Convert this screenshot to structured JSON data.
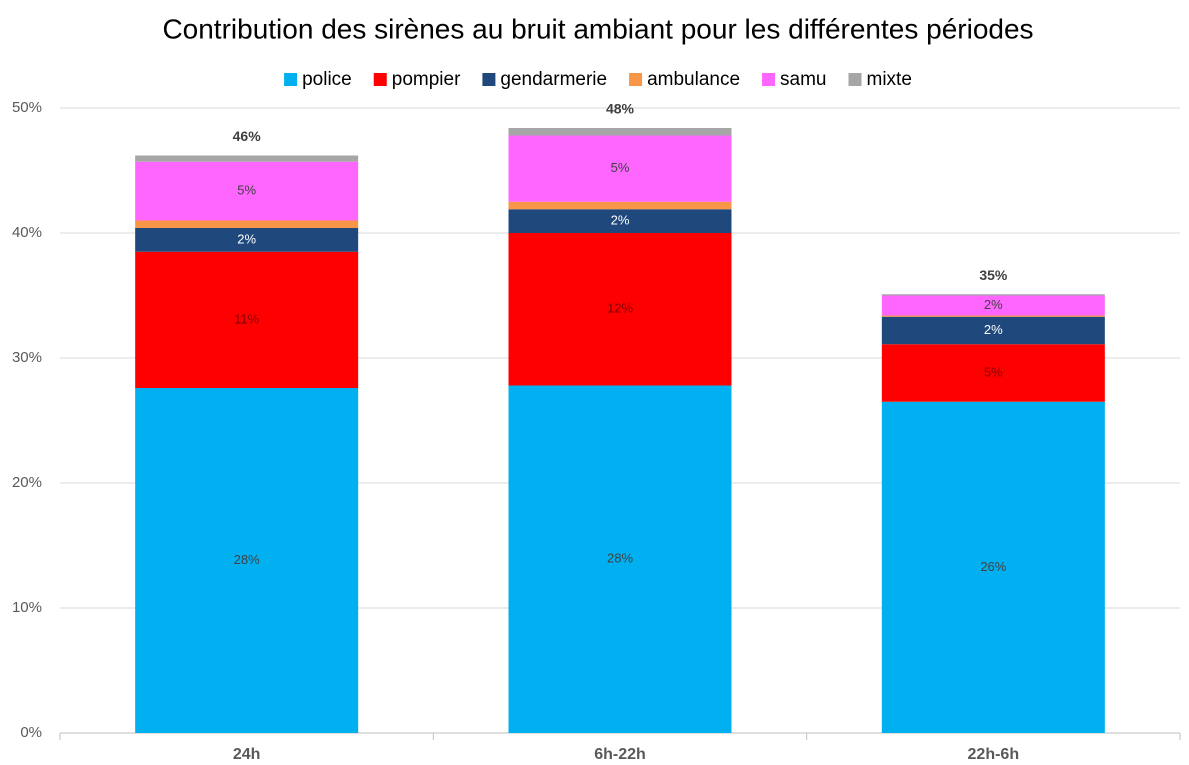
{
  "chart_data": {
    "type": "stacked_bar",
    "title": "Contribution des sirènes au bruit ambiant pour les différentes périodes",
    "categories": [
      "24h",
      "6h-22h",
      "22h-6h"
    ],
    "series": [
      {
        "name": "police",
        "color": "#00b0f0",
        "values": [
          27.6,
          27.8,
          26.5
        ],
        "value_labels": [
          "28%",
          "28%",
          "26%"
        ]
      },
      {
        "name": "pompier",
        "color": "#ff0000",
        "values": [
          10.9,
          12.2,
          4.6
        ],
        "value_labels": [
          "11%",
          "12%",
          "5%"
        ]
      },
      {
        "name": "gendarmerie",
        "color": "#1f497d",
        "values": [
          1.9,
          1.9,
          2.2
        ],
        "value_labels": [
          "2%",
          "2%",
          "2%"
        ]
      },
      {
        "name": "ambulance",
        "color": "#f79646",
        "values": [
          0.6,
          0.6,
          0.1
        ],
        "value_labels": [
          null,
          null,
          null
        ]
      },
      {
        "name": "samu",
        "color": "#ff66ff",
        "values": [
          4.7,
          5.3,
          1.6
        ],
        "value_labels": [
          "5%",
          "5%",
          "2%"
        ]
      },
      {
        "name": "mixte",
        "color": "#a6a6a6",
        "values": [
          0.5,
          0.6,
          0.1
        ],
        "value_labels": [
          null,
          null,
          null
        ]
      }
    ],
    "totals": [
      46.2,
      48.4,
      35.1
    ],
    "total_labels": [
      "46%",
      "48%",
      "35%"
    ],
    "ylim": [
      0,
      50
    ],
    "yticks": [
      {
        "value": 0,
        "label": "0%"
      },
      {
        "value": 10,
        "label": "10%"
      },
      {
        "value": 20,
        "label": "20%"
      },
      {
        "value": 30,
        "label": "30%"
      },
      {
        "value": 40,
        "label": "40%"
      },
      {
        "value": 50,
        "label": "50%"
      }
    ],
    "grid": true,
    "legend": "top"
  }
}
